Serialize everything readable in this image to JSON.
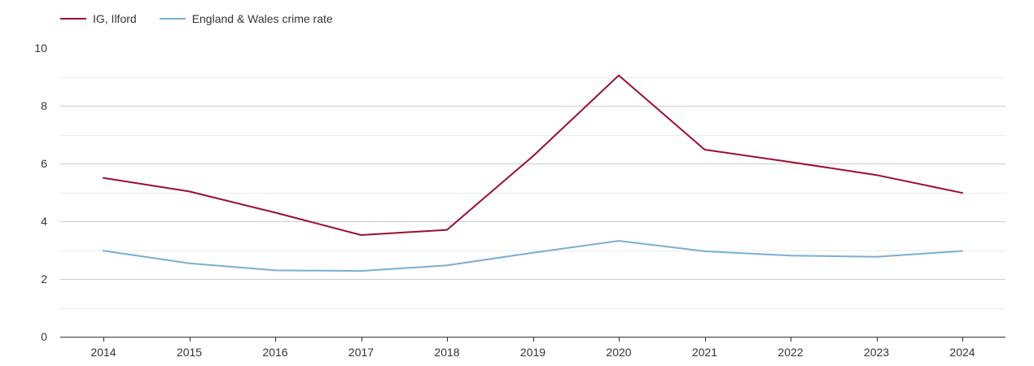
{
  "legend": {
    "items": [
      {
        "label": "IG, Ilford",
        "color": "#9b0e33"
      },
      {
        "label": "England & Wales crime rate",
        "color": "#7aaed3"
      }
    ]
  },
  "chart_data": {
    "type": "line",
    "title": "",
    "xlabel": "",
    "ylabel": "",
    "x": [
      "2014",
      "2015",
      "2016",
      "2017",
      "2018",
      "2019",
      "2020",
      "2021",
      "2022",
      "2023",
      "2024"
    ],
    "ylim": [
      0,
      10
    ],
    "yticks": [
      0,
      2,
      4,
      6,
      8,
      10
    ],
    "grid": true,
    "legend_position": "top-left",
    "series": [
      {
        "name": "IG, Ilford",
        "color": "#9b0e33",
        "values": [
          5.5,
          5.03,
          4.3,
          3.52,
          3.7,
          6.25,
          9.05,
          6.48,
          6.05,
          5.6,
          4.98
        ]
      },
      {
        "name": "England & Wales crime rate",
        "color": "#7aaed3",
        "values": [
          2.98,
          2.54,
          2.3,
          2.28,
          2.47,
          2.91,
          3.32,
          2.96,
          2.81,
          2.77,
          2.97
        ]
      }
    ]
  }
}
